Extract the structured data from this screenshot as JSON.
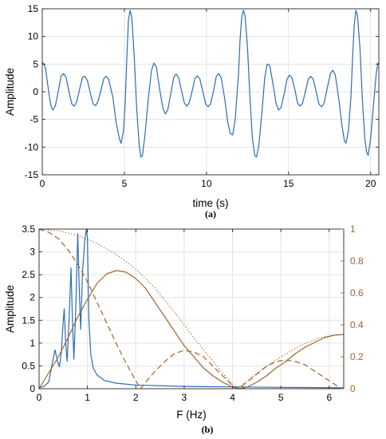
{
  "chart_data": [
    {
      "id": "a",
      "type": "line",
      "caption": "(a)",
      "xlabel": "time (s)",
      "ylabel": "Amplitude",
      "xlim": [
        0,
        20.5
      ],
      "ylim": [
        -15,
        15
      ],
      "xticks": [
        0,
        5,
        10,
        15,
        20
      ],
      "yticks": [
        15,
        10,
        5,
        0,
        -5,
        -10,
        -15
      ],
      "grid": true,
      "series_color": "#2B6CB5",
      "series": [
        {
          "name": "",
          "points": [
            [
              0,
              5.3
            ],
            [
              0.1,
              5.0
            ],
            [
              0.2,
              4.2
            ],
            [
              0.3,
              2.0
            ],
            [
              0.45,
              -1.2
            ],
            [
              0.55,
              -2.8
            ],
            [
              0.65,
              -3.3
            ],
            [
              0.8,
              -2.5
            ],
            [
              1.0,
              0.5
            ],
            [
              1.15,
              2.9
            ],
            [
              1.3,
              3.3
            ],
            [
              1.45,
              2.6
            ],
            [
              1.65,
              -0.3
            ],
            [
              1.8,
              -2.2
            ],
            [
              1.95,
              -2.6
            ],
            [
              2.1,
              -1.8
            ],
            [
              2.3,
              0.8
            ],
            [
              2.45,
              2.6
            ],
            [
              2.6,
              2.8
            ],
            [
              2.75,
              2.0
            ],
            [
              2.95,
              -0.5
            ],
            [
              3.1,
              -2.2
            ],
            [
              3.25,
              -2.5
            ],
            [
              3.4,
              -1.7
            ],
            [
              3.6,
              0.6
            ],
            [
              3.75,
              2.4
            ],
            [
              3.9,
              2.8
            ],
            [
              4.05,
              2.2
            ],
            [
              4.3,
              -1.0
            ],
            [
              4.5,
              -5.5
            ],
            [
              4.7,
              -8.5
            ],
            [
              4.8,
              -9.3
            ],
            [
              4.95,
              -7.0
            ],
            [
              5.05,
              -2.0
            ],
            [
              5.15,
              6.0
            ],
            [
              5.25,
              13.0
            ],
            [
              5.35,
              14.7
            ],
            [
              5.45,
              13.5
            ],
            [
              5.6,
              6.5
            ],
            [
              5.75,
              -3.0
            ],
            [
              5.9,
              -9.5
            ],
            [
              6.0,
              -11.8
            ],
            [
              6.1,
              -11.5
            ],
            [
              6.25,
              -8.0
            ],
            [
              6.45,
              -1.5
            ],
            [
              6.65,
              3.8
            ],
            [
              6.8,
              5.2
            ],
            [
              6.95,
              4.5
            ],
            [
              7.15,
              0.5
            ],
            [
              7.35,
              -3.0
            ],
            [
              7.5,
              -4.0
            ],
            [
              7.65,
              -3.2
            ],
            [
              7.85,
              0.0
            ],
            [
              8.0,
              2.5
            ],
            [
              8.15,
              3.2
            ],
            [
              8.3,
              2.6
            ],
            [
              8.5,
              0.0
            ],
            [
              8.65,
              -2.0
            ],
            [
              8.8,
              -2.6
            ],
            [
              8.95,
              -2.0
            ],
            [
              9.15,
              0.4
            ],
            [
              9.3,
              2.4
            ],
            [
              9.45,
              2.9
            ],
            [
              9.6,
              2.3
            ],
            [
              9.8,
              -0.2
            ],
            [
              9.95,
              -2.2
            ],
            [
              10.1,
              -2.7
            ],
            [
              10.25,
              -2.2
            ],
            [
              10.45,
              0.4
            ],
            [
              10.6,
              2.8
            ],
            [
              10.75,
              3.3
            ],
            [
              10.9,
              2.5
            ],
            [
              11.1,
              -1.0
            ],
            [
              11.3,
              -5.5
            ],
            [
              11.45,
              -7.5
            ],
            [
              11.6,
              -7.8
            ],
            [
              11.75,
              -5.0
            ],
            [
              11.95,
              3.0
            ],
            [
              12.05,
              9.5
            ],
            [
              12.15,
              13.5
            ],
            [
              12.25,
              14.7
            ],
            [
              12.35,
              13.8
            ],
            [
              12.5,
              8.0
            ],
            [
              12.65,
              -1.0
            ],
            [
              12.8,
              -8.5
            ],
            [
              12.95,
              -11.5
            ],
            [
              13.05,
              -11.8
            ],
            [
              13.2,
              -9.5
            ],
            [
              13.4,
              -3.0
            ],
            [
              13.55,
              2.5
            ],
            [
              13.7,
              5.0
            ],
            [
              13.85,
              4.8
            ],
            [
              14.05,
              1.5
            ],
            [
              14.25,
              -2.2
            ],
            [
              14.4,
              -3.3
            ],
            [
              14.55,
              -2.8
            ],
            [
              14.75,
              -0.2
            ],
            [
              14.9,
              2.2
            ],
            [
              15.05,
              3.0
            ],
            [
              15.2,
              2.6
            ],
            [
              15.4,
              0.2
            ],
            [
              15.55,
              -2.0
            ],
            [
              15.7,
              -2.6
            ],
            [
              15.85,
              -2.1
            ],
            [
              16.05,
              0.3
            ],
            [
              16.2,
              2.3
            ],
            [
              16.35,
              2.8
            ],
            [
              16.5,
              2.3
            ],
            [
              16.7,
              -0.2
            ],
            [
              16.85,
              -2.2
            ],
            [
              17.0,
              -2.7
            ],
            [
              17.15,
              -2.2
            ],
            [
              17.35,
              0.5
            ],
            [
              17.55,
              3.3
            ],
            [
              17.7,
              3.9
            ],
            [
              17.85,
              3.0
            ],
            [
              18.05,
              -1.0
            ],
            [
              18.25,
              -6.0
            ],
            [
              18.4,
              -8.8
            ],
            [
              18.5,
              -9.3
            ],
            [
              18.65,
              -7.0
            ],
            [
              18.8,
              -1.0
            ],
            [
              18.9,
              6.0
            ],
            [
              19.0,
              12.0
            ],
            [
              19.1,
              14.7
            ],
            [
              19.2,
              13.8
            ],
            [
              19.35,
              8.0
            ],
            [
              19.5,
              -1.5
            ],
            [
              19.65,
              -8.5
            ],
            [
              19.75,
              -10.8
            ],
            [
              19.85,
              -11.5
            ],
            [
              20.0,
              -8.5
            ],
            [
              20.2,
              -1.5
            ],
            [
              20.35,
              3.5
            ],
            [
              20.45,
              5.2
            ],
            [
              20.5,
              5.0
            ]
          ]
        }
      ]
    },
    {
      "id": "b",
      "type": "line",
      "caption": "(b)",
      "xlabel": "F (Hz)",
      "ylabel": "Amplitude",
      "xlim": [
        0,
        6.3
      ],
      "ylim": [
        0,
        3.5
      ],
      "xticks": [
        0,
        1,
        2,
        3,
        4,
        5,
        6
      ],
      "yticks": [
        3.5,
        3,
        2.5,
        2,
        1.5,
        1,
        0.5,
        0
      ],
      "ylim_right": [
        0,
        1
      ],
      "yticks_right": [
        1,
        0.8,
        0.6,
        0.4,
        0.2,
        0
      ],
      "grid": true,
      "left_color": "#2B6CB5",
      "right_color": "#A0652A",
      "series": [
        {
          "name": "",
          "axis": "left",
          "style": "solid",
          "points": [
            [
              0,
              0.02
            ],
            [
              0.1,
              0.05
            ],
            [
              0.2,
              0.15
            ],
            [
              0.3,
              0.7
            ],
            [
              0.33,
              0.85
            ],
            [
              0.38,
              0.6
            ],
            [
              0.42,
              0.48
            ],
            [
              0.46,
              0.8
            ],
            [
              0.5,
              1.5
            ],
            [
              0.52,
              1.75
            ],
            [
              0.55,
              1.0
            ],
            [
              0.58,
              0.6
            ],
            [
              0.62,
              1.5
            ],
            [
              0.66,
              2.65
            ],
            [
              0.69,
              1.5
            ],
            [
              0.72,
              0.65
            ],
            [
              0.76,
              1.8
            ],
            [
              0.8,
              3.4
            ],
            [
              0.83,
              2.2
            ],
            [
              0.86,
              1.3
            ],
            [
              0.9,
              2.6
            ],
            [
              0.95,
              3.3
            ],
            [
              0.98,
              3.5
            ],
            [
              1.0,
              3.3
            ],
            [
              1.03,
              1.5
            ],
            [
              1.07,
              0.75
            ],
            [
              1.12,
              0.45
            ],
            [
              1.2,
              0.3
            ],
            [
              1.35,
              0.18
            ],
            [
              1.6,
              0.12
            ],
            [
              2.0,
              0.08
            ],
            [
              3.0,
              0.05
            ],
            [
              4.0,
              0.04
            ],
            [
              5.0,
              0.03
            ],
            [
              6.3,
              0.02
            ]
          ]
        },
        {
          "name": "",
          "axis": "right",
          "style": "solid",
          "points": [
            [
              0,
              0
            ],
            [
              0.2,
              0.1
            ],
            [
              0.4,
              0.2
            ],
            [
              0.6,
              0.32
            ],
            [
              0.8,
              0.45
            ],
            [
              1.0,
              0.56
            ],
            [
              1.2,
              0.66
            ],
            [
              1.4,
              0.72
            ],
            [
              1.6,
              0.74
            ],
            [
              1.8,
              0.73
            ],
            [
              2.0,
              0.69
            ],
            [
              2.2,
              0.63
            ],
            [
              2.4,
              0.54
            ],
            [
              2.6,
              0.45
            ],
            [
              2.8,
              0.36
            ],
            [
              3.0,
              0.27
            ],
            [
              3.2,
              0.2
            ],
            [
              3.4,
              0.13
            ],
            [
              3.6,
              0.08
            ],
            [
              3.8,
              0.04
            ],
            [
              4.0,
              0.01
            ],
            [
              4.15,
              0.0
            ],
            [
              4.3,
              0.01
            ],
            [
              4.5,
              0.04
            ],
            [
              4.7,
              0.08
            ],
            [
              4.9,
              0.13
            ],
            [
              5.1,
              0.17
            ],
            [
              5.3,
              0.22
            ],
            [
              5.5,
              0.26
            ],
            [
              5.7,
              0.29
            ],
            [
              5.9,
              0.32
            ],
            [
              6.1,
              0.335
            ],
            [
              6.3,
              0.34
            ]
          ]
        },
        {
          "name": "",
          "axis": "right",
          "style": "dashed",
          "points": [
            [
              0,
              1.0
            ],
            [
              0.2,
              0.98
            ],
            [
              0.4,
              0.94
            ],
            [
              0.6,
              0.87
            ],
            [
              0.8,
              0.78
            ],
            [
              1.0,
              0.67
            ],
            [
              1.2,
              0.54
            ],
            [
              1.4,
              0.41
            ],
            [
              1.6,
              0.28
            ],
            [
              1.8,
              0.16
            ],
            [
              2.0,
              0.05
            ],
            [
              2.1,
              0.0
            ],
            [
              2.2,
              0.04
            ],
            [
              2.4,
              0.11
            ],
            [
              2.6,
              0.17
            ],
            [
              2.8,
              0.22
            ],
            [
              3.0,
              0.24
            ],
            [
              3.2,
              0.23
            ],
            [
              3.4,
              0.2
            ],
            [
              3.6,
              0.14
            ],
            [
              3.8,
              0.08
            ],
            [
              4.0,
              0.02
            ],
            [
              4.12,
              0.0
            ],
            [
              4.3,
              0.04
            ],
            [
              4.5,
              0.09
            ],
            [
              4.7,
              0.14
            ],
            [
              4.9,
              0.17
            ],
            [
              5.1,
              0.18
            ],
            [
              5.3,
              0.17
            ],
            [
              5.5,
              0.15
            ],
            [
              5.7,
              0.11
            ],
            [
              5.9,
              0.07
            ],
            [
              6.1,
              0.03
            ],
            [
              6.2,
              0.01
            ]
          ]
        },
        {
          "name": "",
          "axis": "right",
          "style": "dotted",
          "points": [
            [
              0,
              1.0
            ],
            [
              0.4,
              0.99
            ],
            [
              0.8,
              0.96
            ],
            [
              1.2,
              0.91
            ],
            [
              1.6,
              0.84
            ],
            [
              2.0,
              0.75
            ],
            [
              2.4,
              0.63
            ],
            [
              2.8,
              0.48
            ],
            [
              3.2,
              0.32
            ],
            [
              3.6,
              0.17
            ],
            [
              3.9,
              0.06
            ],
            [
              4.1,
              0.0
            ],
            [
              4.3,
              0.05
            ],
            [
              4.6,
              0.12
            ],
            [
              5.0,
              0.2
            ],
            [
              5.4,
              0.27
            ],
            [
              5.8,
              0.32
            ],
            [
              6.2,
              0.34
            ]
          ]
        }
      ]
    }
  ]
}
